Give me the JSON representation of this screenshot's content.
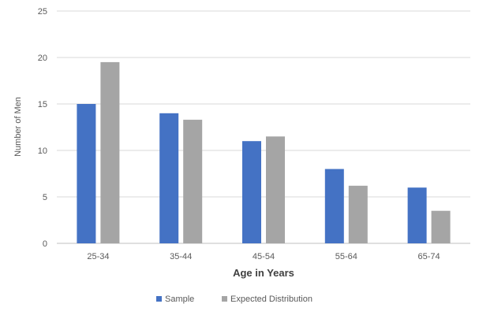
{
  "chart_data": {
    "type": "bar",
    "categories": [
      "25-34",
      "35-44",
      "45-54",
      "55-64",
      "65-74"
    ],
    "series": [
      {
        "name": "Sample",
        "values": [
          15,
          14,
          11,
          8,
          6
        ],
        "color": "#4472c4"
      },
      {
        "name": "Expected Distribution",
        "values": [
          19.5,
          13.3,
          11.5,
          6.2,
          3.5
        ],
        "color": "#a5a5a5"
      }
    ],
    "title": "",
    "xlabel": "Age in Years",
    "ylabel": "Number of Men",
    "ylim": [
      0,
      25
    ],
    "yticks": [
      0,
      5,
      10,
      15,
      20,
      25
    ],
    "grid": true,
    "legend": "bottom"
  }
}
